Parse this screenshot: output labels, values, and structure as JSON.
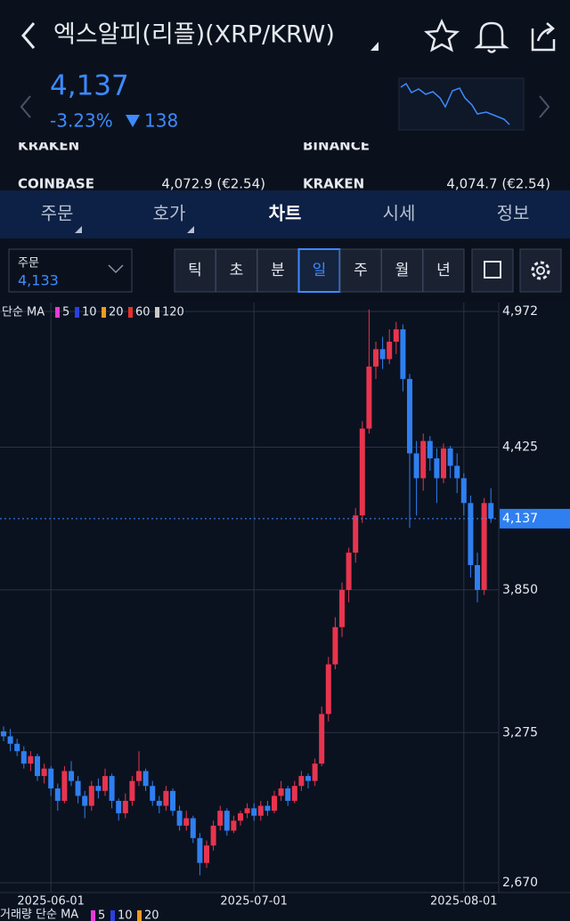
{
  "header": {
    "title": "엑스알피(리플)(XRP/KRW)",
    "price": "4,137",
    "change_rate": "-3.23%",
    "change": "138"
  },
  "exchanges": [
    "KRAKEN",
    "BINANCE",
    "COINBASE",
    "KRAKEN"
  ],
  "exchange_prices": [
    "4,072.9 (€2.54)",
    "4,074.7 (€2.54)"
  ],
  "tabs": [
    "주문",
    "호가",
    "차트",
    "시세",
    "정보"
  ],
  "order_box": {
    "label": "주문",
    "value": "4,133"
  },
  "periods": [
    "틱",
    "초",
    "분",
    "일",
    "주",
    "월",
    "년"
  ],
  "chart_data": {
    "type": "candlestick",
    "legend_label": "단순 MA",
    "ma_periods": [
      5,
      10,
      20,
      60,
      120
    ],
    "ma_colors": [
      "#e83ad8",
      "#2b3fe0",
      "#f39a1e",
      "#e8302a",
      "#c9c9c9"
    ],
    "up_color": "#e8344e",
    "down_color": "#2f7ff0",
    "categories": [
      null,
      null,
      null,
      null,
      null,
      null,
      null,
      "2025-06-01",
      null,
      null,
      null,
      null,
      null,
      null,
      null,
      null,
      null,
      null,
      null,
      null,
      null,
      null,
      null,
      null,
      null,
      null,
      null,
      null,
      null,
      null,
      null,
      null,
      null,
      null,
      null,
      null,
      null,
      "2025-07-01",
      null,
      null,
      null,
      null,
      null,
      null,
      null,
      null,
      null,
      null,
      null,
      null,
      null,
      null,
      null,
      null,
      null,
      null,
      null,
      null,
      null,
      null,
      null,
      null,
      null,
      null,
      null,
      null,
      null,
      null,
      "2025-08-01",
      null,
      null,
      null,
      null
    ],
    "open": [
      3280,
      3260,
      3230,
      3200,
      3150,
      3180,
      3100,
      3130,
      3050,
      3000,
      3120,
      3080,
      3020,
      2980,
      3060,
      3040,
      3100,
      3000,
      2950,
      3000,
      3080,
      3120,
      3060,
      3000,
      2980,
      3040,
      2960,
      2900,
      2930,
      2850,
      2750,
      2820,
      2900,
      2960,
      2880,
      2920,
      2950,
      2970,
      2940,
      2980,
      2960,
      3020,
      3050,
      3000,
      3060,
      3100,
      3080,
      3150,
      3350,
      3550,
      3700,
      3850,
      4000,
      4150,
      4500,
      4750,
      4820,
      4780,
      4850,
      4900,
      4700,
      4400,
      4300,
      4450,
      4380,
      4300,
      4420,
      4350,
      4300,
      4200,
      3950,
      3850,
      4200
    ],
    "high": [
      3300,
      3290,
      3250,
      3220,
      3200,
      3190,
      3150,
      3140,
      3070,
      3140,
      3160,
      3100,
      3040,
      3080,
      3090,
      3130,
      3110,
      3010,
      3030,
      3100,
      3200,
      3130,
      3080,
      3020,
      3060,
      3050,
      2980,
      2960,
      2940,
      2870,
      2840,
      2920,
      2980,
      2970,
      2940,
      2960,
      2990,
      2990,
      3000,
      3000,
      3040,
      3080,
      3060,
      3080,
      3120,
      3110,
      3170,
      3380,
      3580,
      3740,
      3880,
      4020,
      4180,
      4530,
      4980,
      4850,
      4870,
      4900,
      4930,
      4920,
      4720,
      4450,
      4480,
      4470,
      4420,
      4440,
      4430,
      4400,
      4320,
      4230,
      4000,
      4220,
      4260
    ],
    "low": [
      3240,
      3200,
      3180,
      3130,
      3120,
      3080,
      3070,
      3020,
      2960,
      2990,
      3060,
      2990,
      2930,
      2960,
      3010,
      3020,
      2970,
      2920,
      2930,
      2980,
      3060,
      3040,
      2980,
      2950,
      2960,
      2940,
      2880,
      2880,
      2830,
      2700,
      2730,
      2800,
      2880,
      2860,
      2870,
      2900,
      2930,
      2920,
      2920,
      2940,
      2950,
      3000,
      2980,
      2990,
      3040,
      3050,
      3060,
      3140,
      3320,
      3530,
      3660,
      3800,
      3960,
      4120,
      4480,
      4700,
      4740,
      4760,
      4800,
      4650,
      4100,
      4150,
      4250,
      4330,
      4200,
      4280,
      4300,
      4240,
      4150,
      3900,
      3800,
      3830,
      4120
    ],
    "close": [
      3260,
      3230,
      3200,
      3150,
      3180,
      3100,
      3130,
      3050,
      3000,
      3120,
      3080,
      3020,
      2980,
      3060,
      3040,
      3100,
      3000,
      2950,
      3000,
      3080,
      3120,
      3060,
      3000,
      2980,
      3040,
      2960,
      2900,
      2930,
      2850,
      2750,
      2820,
      2900,
      2960,
      2880,
      2920,
      2950,
      2970,
      2940,
      2980,
      2960,
      3020,
      3050,
      3000,
      3060,
      3100,
      3080,
      3150,
      3350,
      3550,
      3700,
      3850,
      4000,
      4150,
      4500,
      4750,
      4820,
      4780,
      4850,
      4900,
      4700,
      4400,
      4300,
      4450,
      4380,
      4300,
      4420,
      4350,
      4300,
      4200,
      3950,
      3850,
      4200,
      4137
    ],
    "ylim": [
      2670,
      4972
    ],
    "yticks": [
      {
        "value": 2670,
        "label": "2,670"
      },
      {
        "value": 3275,
        "label": "3,275"
      },
      {
        "value": 3850,
        "label": "3,850"
      },
      {
        "value": 4425,
        "label": "4,425"
      },
      {
        "value": 4972,
        "label": "4,972"
      }
    ],
    "grid": true,
    "current_price": {
      "value": 4137,
      "label": "4,137"
    },
    "volume_legend": "거래량 단순 MA",
    "volume_ma_periods": [
      5,
      10,
      20
    ]
  }
}
